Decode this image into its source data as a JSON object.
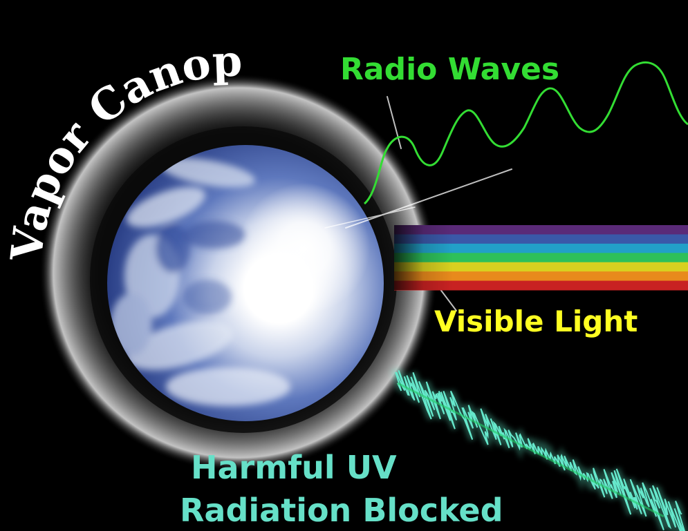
{
  "labels": {
    "canopy": "Vapor Canopy",
    "radio": "Radio Waves",
    "visible": "Visible Light",
    "uv_line1": "Harmful UV",
    "uv_line2": "Radiation Blocked"
  },
  "colors": {
    "background": "#000000",
    "canopy_text": "#ffffff",
    "radio": "#33dd33",
    "visible": "#ffff22",
    "uv": "#66e0c8",
    "earth_ocean": "#3f5fae",
    "earth_cloud": "#dfe6f2"
  },
  "spectrum_colors": [
    "#5a2a78",
    "#3a58a8",
    "#22a0c8",
    "#2ec05a",
    "#d8d020",
    "#e88a1c",
    "#c82222"
  ],
  "icons": {
    "earth": "earth-globe",
    "radio_wave": "sine-wave",
    "uv_wave": "noisy-wave",
    "light_beam": "rainbow-beam"
  }
}
